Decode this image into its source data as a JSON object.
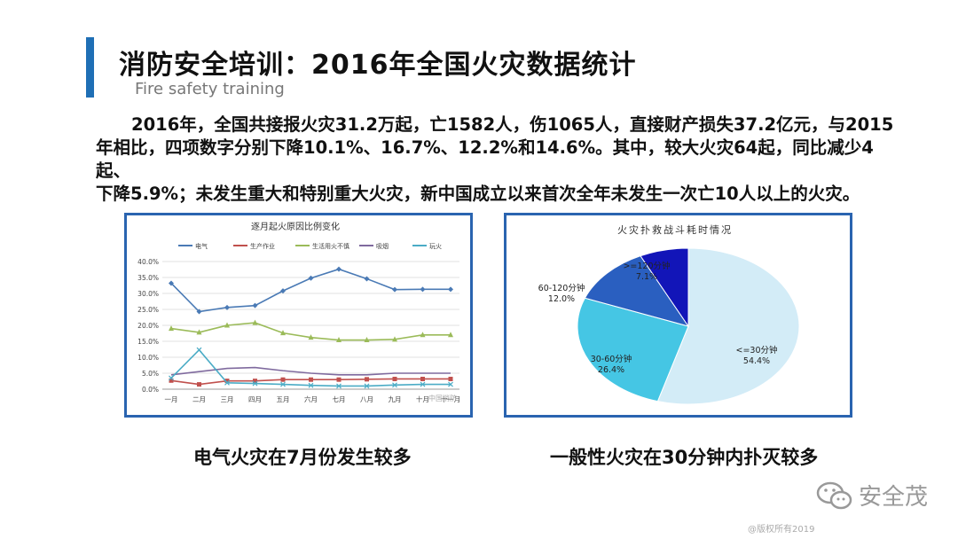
{
  "header": {
    "title": "消防安全培训：2016年全国火灾数据统计",
    "subtitle": "Fire safety training"
  },
  "body_lines": [
    "2016年，全国共接报火灾31.2万起，亡1582人，伤1065人，直接财产损失37.2亿元，与2015",
    "年相比，四项数字分别下降10.1%、16.7%、12.2%和14.6%。其中，较大火灾64起，同比减少4起、",
    "下降5.9%；未发生重大和特别重大火灾，新中国成立以来首次全年未发生一次亡10人以上的火灾。"
  ],
  "captions": {
    "left": "电气火灾在7月份发生较多",
    "right": "一般性火灾在30分钟内扑灭较多"
  },
  "watermark": {
    "brand": "安全茂",
    "inner": "中国消防"
  },
  "copyright": "@版权所有2019",
  "chart_data": [
    {
      "type": "line",
      "title": "逐月起火原因比例变化",
      "x": [
        "一月",
        "二月",
        "三月",
        "四月",
        "五月",
        "六月",
        "七月",
        "八月",
        "九月",
        "十月",
        "十一月"
      ],
      "yticks": [
        "0.0%",
        "5.0%",
        "10.0%",
        "15.0%",
        "20.0%",
        "25.0%",
        "30.0%",
        "35.0%",
        "40.0%"
      ],
      "ylim": [
        0,
        40
      ],
      "legend_position": "top",
      "series": [
        {
          "name": "电气",
          "color": "#4a7ab5",
          "marker": "diamond",
          "values": [
            33.2,
            24.3,
            25.6,
            26.2,
            30.8,
            34.8,
            37.6,
            34.6,
            31.2,
            31.3,
            31.3
          ]
        },
        {
          "name": "生产作业",
          "color": "#c0504d",
          "marker": "square",
          "values": [
            2.7,
            1.5,
            2.6,
            2.6,
            3.0,
            3.0,
            3.0,
            3.1,
            3.2,
            3.2,
            3.2
          ]
        },
        {
          "name": "生活用火不慎",
          "color": "#9bbb59",
          "marker": "triangle",
          "values": [
            19.0,
            17.8,
            20.0,
            20.8,
            17.6,
            16.2,
            15.4,
            15.4,
            15.6,
            17.0,
            17.0
          ]
        },
        {
          "name": "吸烟",
          "color": "#7f6a9e",
          "marker": "none",
          "values": [
            4.5,
            5.5,
            6.5,
            6.8,
            5.8,
            5.0,
            4.5,
            4.5,
            5.0,
            5.0,
            5.0
          ]
        },
        {
          "name": "玩火",
          "color": "#4bacc6",
          "marker": "x",
          "values": [
            3.5,
            12.3,
            2.0,
            1.8,
            1.5,
            1.2,
            1.0,
            1.0,
            1.3,
            1.5,
            1.5
          ]
        }
      ]
    },
    {
      "type": "pie",
      "title": "火灾扑救战斗耗时情况",
      "slices": [
        {
          "label": "<=30分钟",
          "percent_label": "54.4%",
          "value": 54.4,
          "color": "#d3ecf7"
        },
        {
          "label": "30-60分钟",
          "percent_label": "26.4%",
          "value": 26.4,
          "color": "#45c6e4"
        },
        {
          "label": "60-120分钟",
          "percent_label": "12.0%",
          "value": 12.0,
          "color": "#2a5fc0"
        },
        {
          "label": ">=120分钟",
          "percent_label": "7.1%",
          "value": 7.1,
          "color": "#1215b8"
        }
      ]
    }
  ]
}
